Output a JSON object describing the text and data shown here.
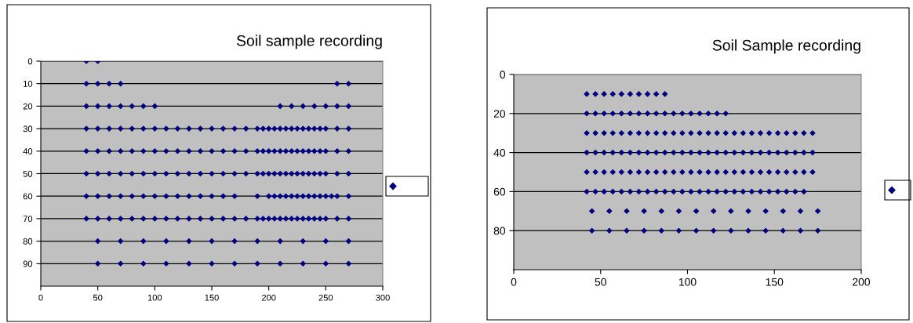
{
  "chart_data": [
    {
      "type": "scatter",
      "title": "Soil sample recording",
      "xlim": [
        0,
        300
      ],
      "xticks": [
        0,
        50,
        100,
        150,
        200,
        250,
        300
      ],
      "ylim": [
        100,
        0
      ],
      "yticks": [
        0,
        10,
        20,
        30,
        40,
        50,
        60,
        70,
        80,
        90
      ],
      "grid": "y",
      "marker": "diamond",
      "series": [
        {
          "color": "#000080",
          "x": [
            40,
            50,
            40,
            50,
            60,
            70,
            260,
            270,
            40,
            50,
            60,
            70,
            80,
            90,
            100,
            210,
            220,
            230,
            240,
            250,
            260,
            270,
            40,
            50,
            60,
            70,
            80,
            90,
            100,
            110,
            120,
            130,
            140,
            150,
            160,
            170,
            180,
            190,
            195,
            200,
            205,
            210,
            215,
            220,
            225,
            230,
            235,
            240,
            245,
            250,
            260,
            270,
            40,
            50,
            60,
            70,
            80,
            90,
            100,
            110,
            120,
            130,
            140,
            150,
            160,
            170,
            180,
            190,
            195,
            200,
            205,
            210,
            215,
            220,
            225,
            230,
            235,
            240,
            245,
            250,
            260,
            270,
            40,
            50,
            60,
            70,
            80,
            90,
            100,
            110,
            120,
            130,
            140,
            150,
            160,
            170,
            180,
            190,
            195,
            200,
            205,
            210,
            215,
            220,
            225,
            230,
            235,
            240,
            245,
            250,
            260,
            270,
            40,
            50,
            60,
            70,
            80,
            90,
            100,
            110,
            120,
            130,
            140,
            150,
            160,
            170,
            190,
            200,
            205,
            210,
            215,
            220,
            225,
            230,
            235,
            240,
            245,
            250,
            255,
            260,
            270,
            40,
            50,
            60,
            70,
            80,
            90,
            100,
            110,
            120,
            130,
            140,
            150,
            160,
            170,
            180,
            190,
            195,
            200,
            205,
            210,
            215,
            220,
            225,
            230,
            235,
            240,
            245,
            250,
            260,
            270,
            50,
            70,
            90,
            110,
            130,
            150,
            170,
            190,
            210,
            230,
            250,
            270,
            50,
            70,
            90,
            110,
            130,
            150,
            170,
            190,
            210,
            230,
            250,
            270
          ],
          "values": [
            0,
            0,
            10,
            10,
            10,
            10,
            10,
            10,
            20,
            20,
            20,
            20,
            20,
            20,
            20,
            20,
            20,
            20,
            20,
            20,
            20,
            20,
            30,
            30,
            30,
            30,
            30,
            30,
            30,
            30,
            30,
            30,
            30,
            30,
            30,
            30,
            30,
            30,
            30,
            30,
            30,
            30,
            30,
            30,
            30,
            30,
            30,
            30,
            30,
            30,
            30,
            30,
            40,
            40,
            40,
            40,
            40,
            40,
            40,
            40,
            40,
            40,
            40,
            40,
            40,
            40,
            40,
            40,
            40,
            40,
            40,
            40,
            40,
            40,
            40,
            40,
            40,
            40,
            40,
            40,
            40,
            40,
            50,
            50,
            50,
            50,
            50,
            50,
            50,
            50,
            50,
            50,
            50,
            50,
            50,
            50,
            50,
            50,
            50,
            50,
            50,
            50,
            50,
            50,
            50,
            50,
            50,
            50,
            50,
            50,
            50,
            50,
            60,
            60,
            60,
            60,
            60,
            60,
            60,
            60,
            60,
            60,
            60,
            60,
            60,
            60,
            60,
            60,
            60,
            60,
            60,
            60,
            60,
            60,
            60,
            60,
            60,
            60,
            60,
            60,
            60,
            70,
            70,
            70,
            70,
            70,
            70,
            70,
            70,
            70,
            70,
            70,
            70,
            70,
            70,
            70,
            70,
            70,
            70,
            70,
            70,
            70,
            70,
            70,
            70,
            70,
            70,
            70,
            70,
            70,
            70,
            80,
            80,
            80,
            80,
            80,
            80,
            80,
            80,
            80,
            80,
            80,
            80,
            90,
            90,
            90,
            90,
            90,
            90,
            90,
            90,
            90,
            90,
            90,
            90
          ]
        }
      ]
    },
    {
      "type": "scatter",
      "title": "Soil Sample recording",
      "xlim": [
        0,
        200
      ],
      "xticks": [
        0,
        50,
        100,
        150,
        200
      ],
      "ylim": [
        100,
        0
      ],
      "yticks": [
        0,
        20,
        40,
        60,
        80
      ],
      "grid": "y",
      "marker": "diamond",
      "series": [
        {
          "color": "#000080",
          "x": [
            42,
            47,
            52,
            57,
            62,
            67,
            72,
            77,
            82,
            87,
            42,
            47,
            52,
            57,
            62,
            67,
            72,
            77,
            82,
            87,
            92,
            97,
            102,
            107,
            112,
            117,
            122,
            42,
            47,
            52,
            57,
            62,
            67,
            72,
            77,
            82,
            87,
            92,
            97,
            102,
            107,
            112,
            117,
            122,
            127,
            132,
            137,
            142,
            147,
            152,
            157,
            162,
            167,
            172,
            42,
            47,
            52,
            57,
            62,
            67,
            72,
            77,
            82,
            87,
            92,
            97,
            102,
            107,
            112,
            117,
            122,
            127,
            132,
            137,
            142,
            147,
            152,
            157,
            162,
            167,
            172,
            42,
            47,
            52,
            57,
            62,
            67,
            72,
            77,
            82,
            87,
            92,
            97,
            102,
            107,
            112,
            117,
            122,
            127,
            132,
            137,
            142,
            147,
            152,
            157,
            162,
            167,
            172,
            42,
            47,
            52,
            57,
            62,
            67,
            72,
            77,
            82,
            87,
            92,
            97,
            102,
            107,
            112,
            117,
            122,
            127,
            132,
            137,
            142,
            147,
            152,
            157,
            162,
            167,
            45,
            55,
            65,
            75,
            85,
            95,
            105,
            115,
            125,
            135,
            145,
            155,
            165,
            175,
            45,
            55,
            65,
            75,
            85,
            95,
            105,
            115,
            125,
            135,
            145,
            155,
            165,
            175
          ],
          "values": [
            10,
            10,
            10,
            10,
            10,
            10,
            10,
            10,
            10,
            10,
            20,
            20,
            20,
            20,
            20,
            20,
            20,
            20,
            20,
            20,
            20,
            20,
            20,
            20,
            20,
            20,
            20,
            30,
            30,
            30,
            30,
            30,
            30,
            30,
            30,
            30,
            30,
            30,
            30,
            30,
            30,
            30,
            30,
            30,
            30,
            30,
            30,
            30,
            30,
            30,
            30,
            30,
            30,
            30,
            40,
            40,
            40,
            40,
            40,
            40,
            40,
            40,
            40,
            40,
            40,
            40,
            40,
            40,
            40,
            40,
            40,
            40,
            40,
            40,
            40,
            40,
            40,
            40,
            40,
            40,
            40,
            50,
            50,
            50,
            50,
            50,
            50,
            50,
            50,
            50,
            50,
            50,
            50,
            50,
            50,
            50,
            50,
            50,
            50,
            50,
            50,
            50,
            50,
            50,
            50,
            50,
            50,
            50,
            60,
            60,
            60,
            60,
            60,
            60,
            60,
            60,
            60,
            60,
            60,
            60,
            60,
            60,
            60,
            60,
            60,
            60,
            60,
            60,
            60,
            60,
            60,
            60,
            60,
            60,
            70,
            70,
            70,
            70,
            70,
            70,
            70,
            70,
            70,
            70,
            70,
            70,
            70,
            70,
            80,
            80,
            80,
            80,
            80,
            80,
            80,
            80,
            80,
            80,
            80,
            80,
            80,
            80
          ]
        }
      ]
    }
  ]
}
